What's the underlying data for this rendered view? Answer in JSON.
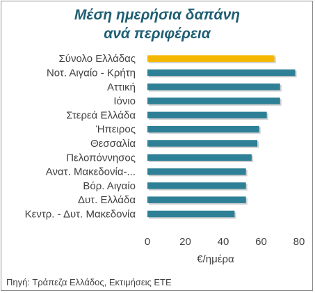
{
  "chart_data": {
    "type": "bar",
    "orientation": "horizontal",
    "title": [
      "Μέση ημερήσια δαπάνη",
      "ανά περιφέρεια"
    ],
    "categories": [
      "Σύνολο Ελλάδας",
      "Νοτ. Αιγαίο - Κρήτη",
      "Αττική",
      "Ιόνιο",
      "Στερεά Ελλάδα",
      "Ήπειρος",
      "Θεσσαλία",
      "Πελοπόννησος",
      "Ανατ. Μακεδονία-...",
      "Βόρ. Αιγαίο",
      "Δυτ. Ελλάδα",
      "Κεντρ. - Δυτ. Μακεδονία"
    ],
    "values": [
      67,
      78,
      70,
      70,
      63,
      59,
      58,
      55,
      52,
      52,
      52,
      46
    ],
    "highlight_index": 0,
    "xlim": [
      0,
      80
    ],
    "xticks": [
      0,
      20,
      40,
      60,
      80
    ],
    "xlabel": "€/ημέρα",
    "grid": false,
    "colors": {
      "bar": "#2e8096",
      "highlight": "#f5b800",
      "shadow": "#cfcfcf"
    }
  },
  "source_note": "Πηγή: Τράπεζα Ελλάδος, Εκτιμήσεις ΕΤΕ"
}
